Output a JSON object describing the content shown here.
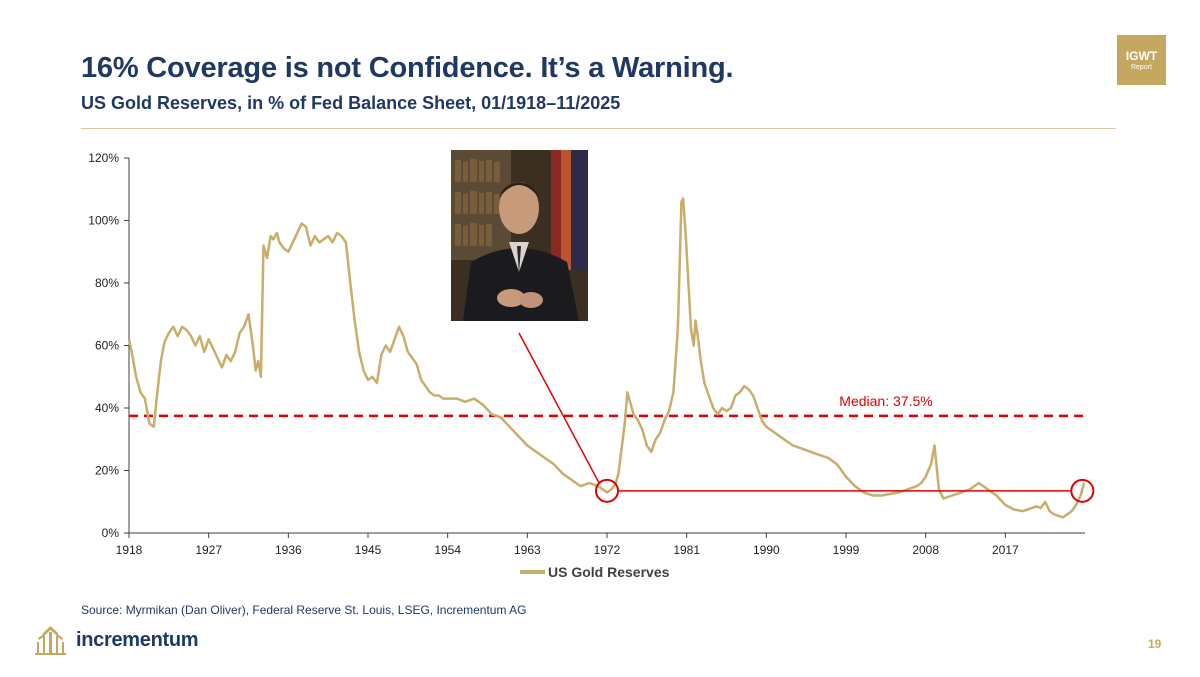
{
  "slide": {
    "title": "16% Coverage is not Confidence. It’s a Warning.",
    "subtitle": "US Gold Reserves, in % of Fed Balance Sheet, 01/1918–11/2025",
    "badge_top": "IGWT",
    "badge_bottom": "Report",
    "source": "Source: Myrmikan (Dan Oliver), Federal Reserve St. Louis, LSEG, Incrementum AG",
    "logo_text": "incrementum",
    "page_number": "19",
    "portrait_alt": "Portrait photograph of a man in a dark suit seated in front of bookshelves and flags"
  },
  "colors": {
    "title": "#1f3864",
    "gold": "#c5a85f",
    "series": "#c9ad6b",
    "median": "#e00000",
    "annotation": "#e00000",
    "axis": "#404040"
  },
  "chart_data": {
    "type": "line",
    "title": "US Gold Reserves, in % of Fed Balance Sheet, 01/1918–11/2025",
    "xlabel": "",
    "ylabel": "",
    "xlim": [
      1918,
      2026
    ],
    "ylim": [
      0,
      120
    ],
    "x_ticks": [
      1918,
      1927,
      1936,
      1945,
      1954,
      1963,
      1972,
      1981,
      1990,
      1999,
      2008,
      2017
    ],
    "y_ticks": [
      0,
      20,
      40,
      60,
      80,
      100,
      120
    ],
    "y_tick_labels": [
      "0%",
      "20%",
      "40%",
      "60%",
      "80%",
      "100%",
      "120%"
    ],
    "grid": false,
    "legend": {
      "position": "bottom-center",
      "label": "US Gold Reserves"
    },
    "median": {
      "value": 37.5,
      "label": "Median: 37.5%"
    },
    "series": [
      {
        "name": "US Gold Reserves",
        "x": [
          1918,
          1918.3,
          1918.8,
          1919.3,
          1919.8,
          1920.3,
          1920.8,
          1921.2,
          1921.6,
          1922,
          1922.5,
          1923,
          1923.5,
          1924,
          1924.5,
          1925,
          1925.5,
          1926,
          1926.5,
          1927,
          1927.5,
          1928,
          1928.5,
          1929,
          1929.5,
          1930,
          1930.5,
          1931,
          1931.5,
          1932,
          1932.3,
          1932.6,
          1932.9,
          1933.2,
          1933.6,
          1934,
          1934.3,
          1934.7,
          1935,
          1935.5,
          1936,
          1936.5,
          1937,
          1937.5,
          1938,
          1938.5,
          1939,
          1939.5,
          1940,
          1940.5,
          1941,
          1941.5,
          1942,
          1942.5,
          1943,
          1943.5,
          1944,
          1944.5,
          1945,
          1945.5,
          1946,
          1946.5,
          1947,
          1947.5,
          1948,
          1948.5,
          1949,
          1949.5,
          1950,
          1950.5,
          1951,
          1951.5,
          1952,
          1952.5,
          1953,
          1953.5,
          1954,
          1955,
          1956,
          1957,
          1958,
          1959,
          1960,
          1961,
          1962,
          1963,
          1964,
          1965,
          1966,
          1967,
          1968,
          1969,
          1970,
          1971,
          1971.5,
          1972,
          1972.5,
          1973,
          1973.3,
          1973.6,
          1974,
          1974.3,
          1974.6,
          1975,
          1975.5,
          1976,
          1976.5,
          1977,
          1977.5,
          1978,
          1978.5,
          1979,
          1979.5,
          1980,
          1980.2,
          1980.4,
          1980.6,
          1980.9,
          1981.2,
          1981.5,
          1981.8,
          1982,
          1982.3,
          1982.6,
          1983,
          1983.5,
          1984,
          1984.5,
          1985,
          1985.5,
          1986,
          1986.5,
          1987,
          1987.5,
          1988,
          1988.5,
          1989,
          1989.5,
          1990,
          1991,
          1992,
          1993,
          1994,
          1995,
          1996,
          1997,
          1998,
          1999,
          2000,
          2001,
          2002,
          2003,
          2004,
          2005,
          2006,
          2007,
          2007.5,
          2008,
          2008.3,
          2008.6,
          2009,
          2009.5,
          2010,
          2011,
          2012,
          2013,
          2013.5,
          2014,
          2014.5,
          2015,
          2016,
          2017,
          2018,
          2019,
          2019.5,
          2020,
          2020.5,
          2021,
          2021.5,
          2022,
          2022.5,
          2023,
          2023.5,
          2024,
          2024.5,
          2025,
          2025.5,
          2025.9
        ],
        "values": [
          62,
          58,
          50,
          45,
          43,
          35,
          34,
          45,
          55,
          61,
          64,
          66,
          63,
          66,
          65,
          63,
          60,
          63,
          58,
          62,
          59,
          56,
          53,
          57,
          55,
          58,
          64,
          66,
          70,
          60,
          52,
          55,
          50,
          92,
          88,
          95,
          94,
          96,
          93,
          91,
          90,
          93,
          96,
          99,
          98,
          92,
          95,
          93,
          94,
          95,
          93,
          96,
          95,
          93,
          80,
          68,
          58,
          52,
          49,
          50,
          48,
          57,
          60,
          58,
          62,
          66,
          63,
          58,
          56,
          54,
          49,
          47,
          45,
          44,
          44,
          43,
          43,
          43,
          42,
          43,
          41,
          38,
          37,
          34,
          31,
          28,
          26,
          24,
          22,
          19,
          17,
          15,
          16,
          15,
          14,
          13,
          14,
          16,
          19,
          26,
          35,
          45,
          42,
          38,
          36,
          33,
          28,
          26,
          30,
          32,
          36,
          39,
          45,
          65,
          85,
          106,
          107,
          95,
          80,
          65,
          60,
          68,
          62,
          55,
          48,
          44,
          40,
          38,
          40,
          39,
          40,
          44,
          45,
          47,
          46,
          44,
          40,
          36,
          34,
          32,
          30,
          28,
          27,
          26,
          25,
          24,
          22,
          18,
          15,
          13,
          12,
          12,
          12.5,
          13,
          14,
          15,
          16,
          18,
          20,
          22,
          28,
          14,
          11,
          12,
          13,
          14,
          15,
          16,
          15,
          14,
          12,
          9,
          7.5,
          7,
          7.5,
          8,
          8.5,
          8,
          10,
          7,
          6,
          5.5,
          5,
          6,
          7,
          9,
          12,
          16
        ]
      }
    ],
    "annotations": [
      {
        "type": "marker",
        "x": 1972,
        "y": 13.5,
        "shape": "circle"
      },
      {
        "type": "marker",
        "x": 2025.7,
        "y": 13.5,
        "shape": "circle"
      },
      {
        "type": "hline",
        "from_x": 1972,
        "to_x": 2025.7,
        "y": 13.5
      },
      {
        "type": "pointer",
        "target_x": 1972,
        "target_y": 13.5,
        "from": "portrait"
      }
    ]
  }
}
